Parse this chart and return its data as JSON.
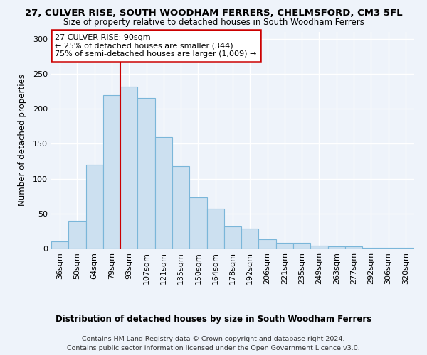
{
  "title": "27, CULVER RISE, SOUTH WOODHAM FERRERS, CHELMSFORD, CM3 5FL",
  "subtitle": "Size of property relative to detached houses in South Woodham Ferrers",
  "xlabel": "Distribution of detached houses by size in South Woodham Ferrers",
  "ylabel": "Number of detached properties",
  "categories": [
    "36sqm",
    "50sqm",
    "64sqm",
    "79sqm",
    "93sqm",
    "107sqm",
    "121sqm",
    "135sqm",
    "150sqm",
    "164sqm",
    "178sqm",
    "192sqm",
    "206sqm",
    "221sqm",
    "235sqm",
    "249sqm",
    "263sqm",
    "277sqm",
    "292sqm",
    "306sqm",
    "320sqm"
  ],
  "values": [
    10,
    40,
    120,
    220,
    232,
    215,
    160,
    118,
    73,
    57,
    32,
    28,
    13,
    8,
    8,
    4,
    3,
    3,
    1,
    1,
    1
  ],
  "bar_color": "#cce0f0",
  "bar_edge_color": "#7ab6d9",
  "property_line_color": "#cc0000",
  "annotation_title": "27 CULVER RISE: 90sqm",
  "annotation_line1": "← 25% of detached houses are smaller (344)",
  "annotation_line2": "75% of semi-detached houses are larger (1,009) →",
  "ylim": [
    0,
    310
  ],
  "footer1": "Contains HM Land Registry data © Crown copyright and database right 2024.",
  "footer2": "Contains public sector information licensed under the Open Government Licence v3.0.",
  "background_color": "#eef3fa",
  "plot_bg_color": "#eef3fa"
}
